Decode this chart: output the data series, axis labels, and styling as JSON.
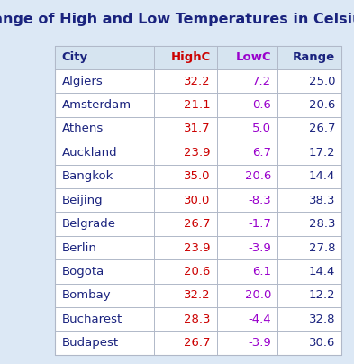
{
  "title": "Range of High and Low Temperatures in Celsius",
  "title_color": "#1a237e",
  "background_color": "#dce8f5",
  "table_bg_color": "#ffffff",
  "header_bg_color": "#d6e4f0",
  "columns": [
    "City",
    "HighC",
    "LowC",
    "Range"
  ],
  "col_colors": [
    "#1a237e",
    "#cc0000",
    "#9900cc",
    "#1a237e"
  ],
  "rows": [
    [
      "Algiers",
      "32.2",
      "7.2",
      "25.0"
    ],
    [
      "Amsterdam",
      "21.1",
      "0.6",
      "20.6"
    ],
    [
      "Athens",
      "31.7",
      "5.0",
      "26.7"
    ],
    [
      "Auckland",
      "23.9",
      "6.7",
      "17.2"
    ],
    [
      "Bangkok",
      "35.0",
      "20.6",
      "14.4"
    ],
    [
      "Beijing",
      "30.0",
      "-8.3",
      "38.3"
    ],
    [
      "Belgrade",
      "26.7",
      "-1.7",
      "28.3"
    ],
    [
      "Berlin",
      "23.9",
      "-3.9",
      "27.8"
    ],
    [
      "Bogota",
      "20.6",
      "6.1",
      "14.4"
    ],
    [
      "Bombay",
      "32.2",
      "20.0",
      "12.2"
    ],
    [
      "Bucharest",
      "28.3",
      "-4.4",
      "32.8"
    ],
    [
      "Budapest",
      "26.7",
      "-3.9",
      "30.6"
    ]
  ],
  "row_colors_city": "#1a237e",
  "row_colors_highc": "#cc0000",
  "row_colors_lowc": "#9900cc",
  "row_colors_range": "#1a237e",
  "grid_color": "#b0b8c8",
  "font_size": 9.5,
  "header_font_size": 9.5,
  "title_fontsize": 11.5
}
